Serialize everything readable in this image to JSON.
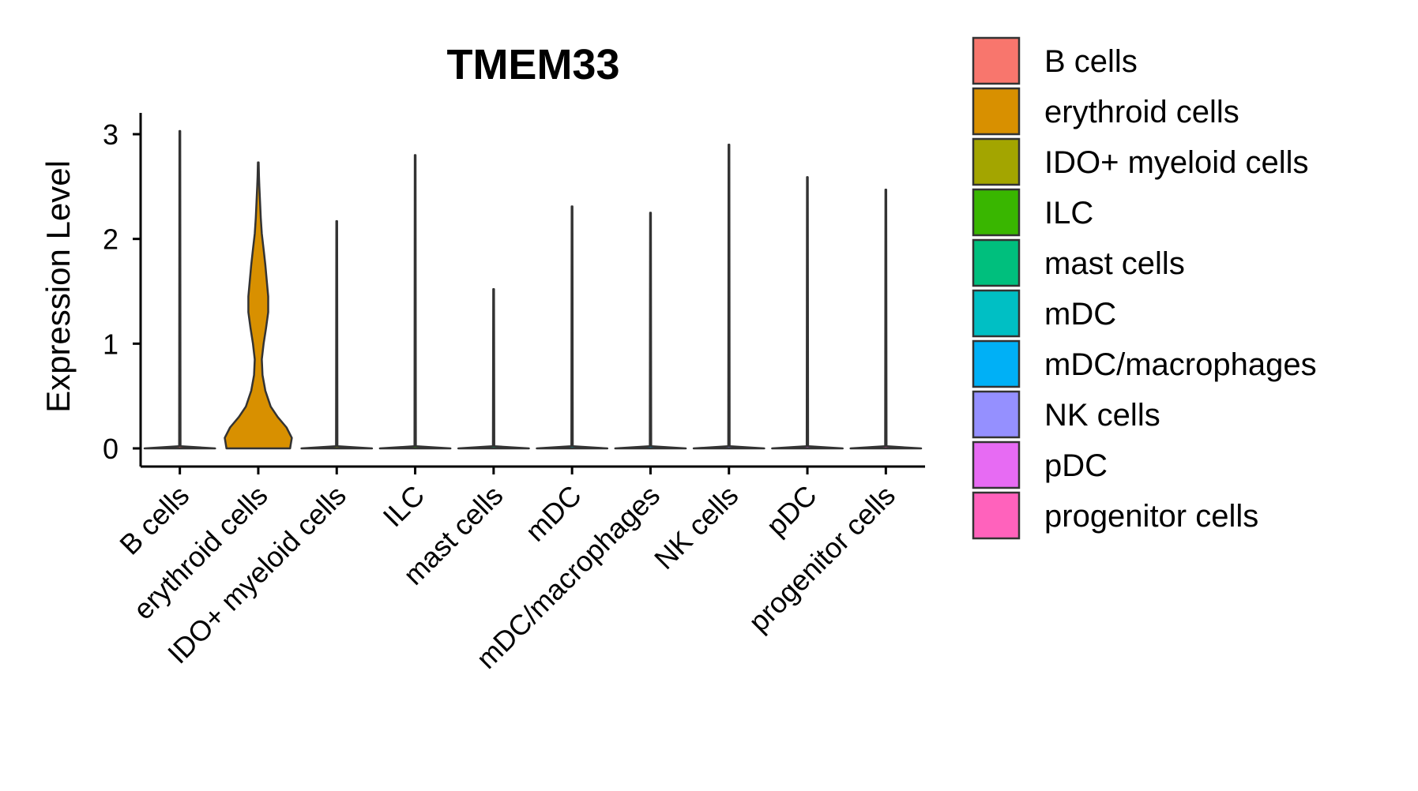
{
  "chart_data": {
    "type": "violin",
    "title": "TMEM33",
    "xlabel": "",
    "ylabel": "Expression Level",
    "ylim": [
      -0.15,
      3.2
    ],
    "yticks": [
      0,
      1,
      2,
      3
    ],
    "grid": false,
    "legend_position": "right",
    "categories": [
      "B cells",
      "erythroid cells",
      "IDO+ myeloid cells",
      "ILC",
      "mast cells",
      "mDC",
      "mDC/macrophages",
      "NK cells",
      "pDC",
      "progenitor cells"
    ],
    "colors": [
      "#F8766D",
      "#D89000",
      "#A3A500",
      "#39B600",
      "#00BF7D",
      "#00BFC4",
      "#00B0F6",
      "#9590FF",
      "#E76BF3",
      "#FF62BC"
    ],
    "max_values": [
      3.03,
      2.73,
      2.17,
      2.8,
      1.52,
      2.31,
      2.25,
      2.9,
      2.59,
      2.47
    ],
    "density_profiles": [
      [
        [
          0,
          1.0
        ],
        [
          0.02,
          0.02
        ],
        [
          3.03,
          0.01
        ]
      ],
      [
        [
          0,
          0.9
        ],
        [
          0.1,
          0.95
        ],
        [
          0.2,
          0.8
        ],
        [
          0.3,
          0.55
        ],
        [
          0.4,
          0.35
        ],
        [
          0.55,
          0.2
        ],
        [
          0.7,
          0.12
        ],
        [
          0.85,
          0.1
        ],
        [
          1.0,
          0.15
        ],
        [
          1.15,
          0.22
        ],
        [
          1.3,
          0.28
        ],
        [
          1.45,
          0.28
        ],
        [
          1.6,
          0.24
        ],
        [
          1.75,
          0.2
        ],
        [
          1.9,
          0.15
        ],
        [
          2.05,
          0.1
        ],
        [
          2.2,
          0.07
        ],
        [
          2.35,
          0.05
        ],
        [
          2.5,
          0.03
        ],
        [
          2.6,
          0.02
        ],
        [
          2.73,
          0.01
        ]
      ],
      [
        [
          0,
          1.0
        ],
        [
          0.02,
          0.02
        ],
        [
          2.17,
          0.01
        ]
      ],
      [
        [
          0,
          1.0
        ],
        [
          0.02,
          0.02
        ],
        [
          2.8,
          0.01
        ]
      ],
      [
        [
          0,
          1.0
        ],
        [
          0.02,
          0.02
        ],
        [
          1.52,
          0.01
        ]
      ],
      [
        [
          0,
          1.0
        ],
        [
          0.02,
          0.02
        ],
        [
          2.31,
          0.01
        ]
      ],
      [
        [
          0,
          1.0
        ],
        [
          0.02,
          0.02
        ],
        [
          2.25,
          0.01
        ]
      ],
      [
        [
          0,
          1.0
        ],
        [
          0.02,
          0.02
        ],
        [
          2.9,
          0.01
        ]
      ],
      [
        [
          0,
          1.0
        ],
        [
          0.02,
          0.02
        ],
        [
          2.59,
          0.01
        ]
      ],
      [
        [
          0,
          1.0
        ],
        [
          0.02,
          0.02
        ],
        [
          2.47,
          0.01
        ]
      ]
    ]
  }
}
